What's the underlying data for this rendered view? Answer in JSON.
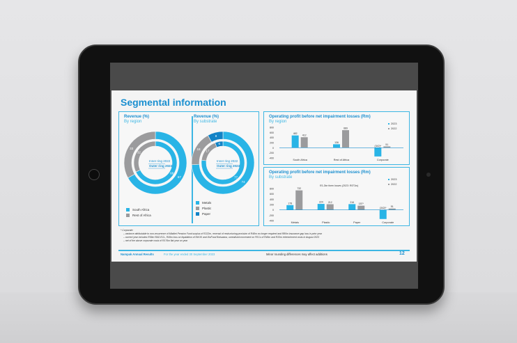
{
  "slide": {
    "title": "Segmental information",
    "page_number": "12",
    "footer_left": "Nampak Annual Results",
    "footer_period": "For the year ended 30 September 2023",
    "footer_note": "Minor rounding differences may affect additions",
    "footnotes": [
      "* Corporate:",
      "– variance attributable to non-recurrence of Mbdkei Pension Fund surplus of R222m, reversal of restructuring provision of R48m no longer required and R80m insurance gap loss in prior year",
      "– current year includes R59m R&D ECL, R49m loss on liquidation of NHUK and DivFood Botswana, unrealised movement on FECs of R46m and R33m retrenchment costs in August 2023",
      "– net of the above corporate costs of R176m flat year on year"
    ]
  },
  "colors": {
    "y2023": "#29b4e6",
    "y2022": "#9b9b9d",
    "paper": "#1283c6",
    "accent": "#1a8fd0"
  },
  "chart_data": [
    {
      "type": "pie",
      "title": "Revenue (%)",
      "subtitle": "By region",
      "ring_labels": {
        "inner": "Inner ring",
        "inner_year": "2022",
        "outer": "Outer ring",
        "outer_year": "2023"
      },
      "categories": [
        "South Africa",
        "Rest of Africa"
      ],
      "outer_2023": [
        67,
        33
      ],
      "inner_2022": [
        68,
        32
      ]
    },
    {
      "type": "pie",
      "title": "Revenue (%)",
      "subtitle": "By substrate",
      "ring_labels": {
        "inner": "Inner ring",
        "inner_year": "2022",
        "outer": "Outer ring",
        "outer_year": "2023"
      },
      "categories": [
        "Metals",
        "Plastic",
        "Paper"
      ],
      "outer_2023": [
        74,
        18,
        8
      ],
      "inner_2022": [
        77,
        17,
        6
      ]
    },
    {
      "type": "bar",
      "title": "Operating profit before net impairment losses (Rm)",
      "subtitle": "By region",
      "ylim": [
        -400,
        800
      ],
      "yticks": [
        "800",
        "600",
        "400",
        "200",
        "0",
        "-200",
        "-400"
      ],
      "categories": [
        "South Africa",
        "Rest of Africa",
        "Corporate"
      ],
      "series": [
        {
          "name": "2023",
          "values": [
            482,
            136,
            -342
          ],
          "labels": [
            "482",
            "136",
            "(342)*"
          ]
        },
        {
          "name": "2022",
          "values": [
            412,
            689,
            51
          ],
          "labels": [
            "412",
            "689",
            "51"
          ]
        }
      ]
    },
    {
      "type": "bar",
      "title": "Operating profit before net impairment losses (Rm)",
      "subtitle": "By substrate",
      "ylim": [
        -400,
        800
      ],
      "yticks": [
        "800",
        "600",
        "400",
        "200",
        "0",
        "-200",
        "-400"
      ],
      "annotation": "R1.2bn forex losses (2023: R571m)",
      "categories": [
        "Metals",
        "Plastic",
        "Paper",
        "Corporate"
      ],
      "series": [
        {
          "name": "2023",
          "values": [
            178,
            224,
            216,
            -342
          ],
          "labels": [
            "178",
            "224",
            "216",
            "(342)*"
          ]
        },
        {
          "name": "2022",
          "values": [
            732,
            212,
            157,
            51
          ],
          "labels": [
            "732",
            "212",
            "157*",
            "51"
          ]
        }
      ]
    }
  ]
}
